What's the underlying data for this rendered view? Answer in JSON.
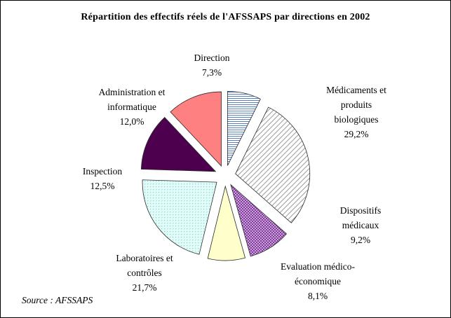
{
  "figure": {
    "title": "Répartition des effectifs réels de l'AFSSAPS par directions en 2002",
    "source": "Source : AFSSAPS"
  },
  "chart_data": {
    "type": "pie",
    "title": "Répartition des effectifs réels de l'AFSSAPS par directions en 2002",
    "unit": "%",
    "values_sum": 100.0,
    "layout": {
      "start_angle_deg": -90,
      "direction": "clockwise",
      "exploded": true,
      "legend": "labels-around-pie"
    },
    "slices": [
      {
        "id": "direction",
        "label": "Direction",
        "value": 7.3,
        "pct_label": "7,3%",
        "pattern": "p-hlines",
        "color": "#5a7fc0",
        "bg": "#ffffff"
      },
      {
        "id": "medicaments",
        "label": "Médicaments et produits biologiques",
        "value": 29.2,
        "pct_label": "29,2%",
        "pattern": "p-diag",
        "color": "#9a9a9a",
        "bg": "#ffffff"
      },
      {
        "id": "dispositifs",
        "label": "Dispositifs médicaux",
        "value": 9.2,
        "pct_label": "9,2%",
        "pattern": "p-check",
        "color": "#7d4096",
        "bg": "#cf9ede"
      },
      {
        "id": "evaluation",
        "label": "Evaluation médico-économique",
        "value": 8.1,
        "pct_label": "8,1%",
        "pattern": null,
        "color": "#ffffcc",
        "bg": "#ffffcc"
      },
      {
        "id": "laboratoires",
        "label": "Laboratoires et contrôles",
        "value": 21.7,
        "pct_label": "21,7%",
        "pattern": "p-dots",
        "color": "#8fd6d2",
        "bg": "#e2fdf9"
      },
      {
        "id": "inspection",
        "label": "Inspection",
        "value": 12.5,
        "pct_label": "12,5%",
        "pattern": null,
        "color": "#4d004d",
        "bg": "#4d004d"
      },
      {
        "id": "administration",
        "label": "Administration et informatique",
        "value": 12.0,
        "pct_label": "12,0%",
        "pattern": null,
        "color": "#ff8080",
        "bg": "#ff8080"
      }
    ]
  }
}
